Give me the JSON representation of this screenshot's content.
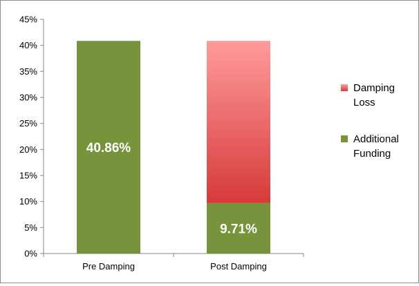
{
  "chart_data": {
    "type": "bar",
    "stacked": true,
    "categories": [
      "Pre Damping",
      "Post Damping"
    ],
    "series": [
      {
        "name": "Additional Funding",
        "color": "#77933c",
        "values": [
          40.86,
          9.71
        ],
        "data_labels": [
          "40.86%",
          "9.71%"
        ]
      },
      {
        "name": "Damping Loss",
        "color_gradient": [
          "#ff9b9b",
          "#d63a3a"
        ],
        "values": [
          0,
          31.15
        ]
      }
    ],
    "legend_labels": [
      [
        "Damping",
        "Loss"
      ],
      [
        "Additional",
        "Funding"
      ]
    ],
    "ylim": [
      0,
      45
    ],
    "yticks": [
      0,
      5,
      10,
      15,
      20,
      25,
      30,
      35,
      40,
      45
    ],
    "ytick_labels": [
      "0%",
      "5%",
      "10%",
      "15%",
      "20%",
      "25%",
      "30%",
      "35%",
      "40%",
      "45%"
    ],
    "grid": false,
    "legend_position": "right"
  }
}
